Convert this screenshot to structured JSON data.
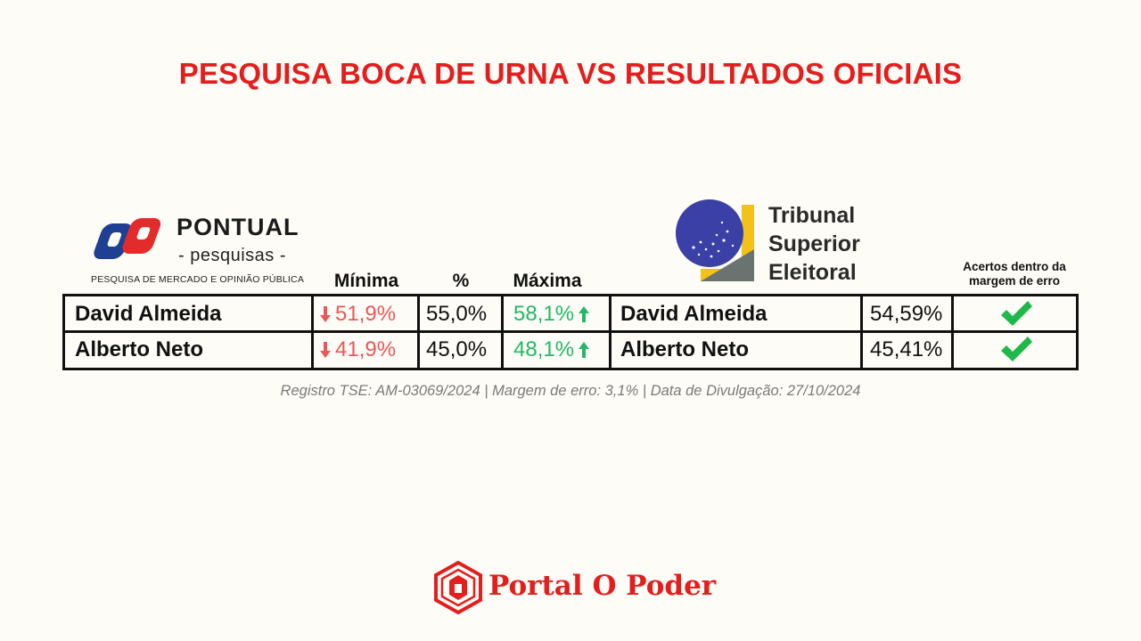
{
  "title": "PESQUISA BOCA DE URNA VS RESULTADOS OFICIAIS",
  "pontual_logo": {
    "name": "PONTUAL",
    "sub": "- pesquisas -",
    "tagline": "PESQUISA DE MERCADO E OPINIÃO PÚBLICA"
  },
  "tse_logo": {
    "line1": "Tribunal",
    "line2": "Superior",
    "line3": "Eleitoral"
  },
  "columns": {
    "minima": "Mínima",
    "percent": "%",
    "maxima": "Máxima",
    "acertos": "Acertos dentro da margem de erro"
  },
  "rows": [
    {
      "candidate": "David Almeida",
      "minima": "51,9%",
      "percent": "55,0%",
      "maxima": "58,1%",
      "official_candidate": "David Almeida",
      "official_result": "54,59%",
      "within_margin": true
    },
    {
      "candidate": "Alberto Neto",
      "minima": "41,9%",
      "percent": "45,0%",
      "maxima": "48,1%",
      "official_candidate": "Alberto Neto",
      "official_result": "45,41%",
      "within_margin": true
    }
  ],
  "footnote": "Registro TSE: AM-03069/2024 | Margem de erro: 3,1% | Data de Divulgação: 27/10/2024",
  "brand": "Portal O Poder",
  "colors": {
    "title": "#e41d1d",
    "down": "#e8585a",
    "up": "#22b868",
    "check": "#1fb84a",
    "pontual_red": "#e32b2b",
    "pontual_blue": "#1e3f92"
  },
  "icons": {
    "down": "arrow-down-icon",
    "up": "arrow-up-icon",
    "check": "check-icon"
  }
}
